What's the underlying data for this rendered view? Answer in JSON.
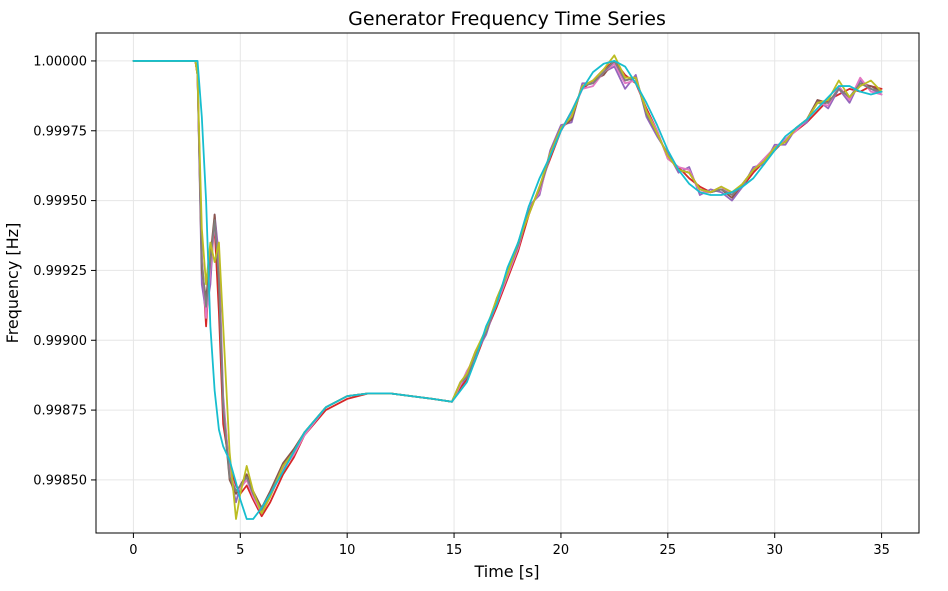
{
  "chart_data": {
    "type": "line",
    "title": "Generator Frequency Time Series",
    "xlabel": "Time [s]",
    "ylabel": "Frequency [Hz]",
    "xlim": [
      -1.75,
      36.75
    ],
    "ylim": [
      0.99831,
      1.0001
    ],
    "xticks": [
      0,
      5,
      10,
      15,
      20,
      25,
      30,
      35
    ],
    "xtick_labels": [
      "0",
      "5",
      "10",
      "15",
      "20",
      "25",
      "30",
      "35"
    ],
    "yticks": [
      0.9985,
      0.99875,
      0.999,
      0.99925,
      0.9995,
      0.99975,
      1.0
    ],
    "ytick_labels": [
      "0.99850",
      "0.99875",
      "0.99900",
      "0.99925",
      "0.99950",
      "0.99975",
      "1.00000"
    ],
    "grid": true,
    "series": [
      {
        "color": "#d62728",
        "x": [
          0,
          2.9,
          3.0,
          3.2,
          3.4,
          3.6,
          3.8,
          4.0,
          4.2,
          4.5,
          4.8,
          5.0,
          5.3,
          5.6,
          6.0,
          6.4,
          7.0,
          7.5,
          8.0,
          9.0,
          10.0,
          11.0,
          12.0,
          13.0,
          14.0,
          14.9,
          15.3,
          15.6,
          16.0,
          16.5,
          17.0,
          17.5,
          18.0,
          18.5,
          19.0,
          19.5,
          20.0,
          20.5,
          21.0,
          21.5,
          22.0,
          22.5,
          23.0,
          23.5,
          24.0,
          24.5,
          25.0,
          25.5,
          26.0,
          26.5,
          27.0,
          27.5,
          28.0,
          28.5,
          29.0,
          29.5,
          30.0,
          30.5,
          31.0,
          31.5,
          32.0,
          32.5,
          33.0,
          33.5,
          34.0,
          34.5,
          35.0
        ],
        "y": [
          1.0,
          1.0,
          0.99995,
          0.9993,
          0.99905,
          0.9993,
          0.9994,
          0.9991,
          0.9987,
          0.99855,
          0.99848,
          0.99845,
          0.99848,
          0.99843,
          0.99837,
          0.99842,
          0.99852,
          0.99858,
          0.99866,
          0.99875,
          0.99879,
          0.99881,
          0.99881,
          0.9988,
          0.99879,
          0.99878,
          0.99883,
          0.99886,
          0.99893,
          0.99903,
          0.99912,
          0.99922,
          0.99932,
          0.99945,
          0.99955,
          0.99965,
          0.99975,
          0.99982,
          0.9999,
          0.99993,
          0.99997,
          1.0,
          0.99995,
          0.99992,
          0.99983,
          0.99975,
          0.99965,
          0.99962,
          0.99958,
          0.99955,
          0.99953,
          0.99954,
          0.99953,
          0.99955,
          0.9996,
          0.99964,
          0.99968,
          0.99972,
          0.99975,
          0.99978,
          0.99982,
          0.99986,
          0.99988,
          0.9999,
          0.99989,
          0.99991,
          0.9999
        ]
      },
      {
        "color": "#9467bd",
        "x": [
          0,
          2.9,
          3.0,
          3.2,
          3.4,
          3.6,
          3.8,
          4.0,
          4.2,
          4.5,
          4.8,
          5.0,
          5.3,
          5.6,
          6.0,
          6.4,
          7.0,
          7.5,
          8.0,
          9.0,
          10.0,
          11.0,
          12.0,
          13.0,
          14.0,
          14.9,
          15.3,
          15.6,
          16.0,
          16.5,
          17.0,
          17.5,
          18.0,
          18.5,
          19.0,
          19.5,
          20.0,
          20.5,
          21.0,
          21.5,
          22.0,
          22.5,
          23.0,
          23.5,
          24.0,
          24.5,
          25.0,
          25.5,
          26.0,
          26.5,
          27.0,
          27.5,
          28.0,
          28.5,
          29.0,
          29.5,
          30.0,
          30.5,
          31.0,
          31.5,
          32.0,
          32.5,
          33.0,
          33.5,
          34.0,
          34.5,
          35.0
        ],
        "y": [
          1.0,
          1.0,
          0.99995,
          0.9992,
          0.9991,
          0.9992,
          0.99945,
          0.9993,
          0.9988,
          0.99852,
          0.99842,
          0.99848,
          0.99852,
          0.99845,
          0.9984,
          0.99845,
          0.99855,
          0.9986,
          0.99866,
          0.99876,
          0.9988,
          0.99881,
          0.99881,
          0.9988,
          0.99879,
          0.99878,
          0.99884,
          0.99887,
          0.99895,
          0.99902,
          0.99914,
          0.99925,
          0.99934,
          0.99948,
          0.99952,
          0.99968,
          0.99977,
          0.99978,
          0.99992,
          0.99992,
          0.99996,
          0.99998,
          0.9999,
          0.99995,
          0.9998,
          0.99973,
          0.99967,
          0.9996,
          0.99962,
          0.99952,
          0.99954,
          0.99953,
          0.9995,
          0.99955,
          0.99962,
          0.99963,
          0.9997,
          0.9997,
          0.99976,
          0.99978,
          0.99986,
          0.99983,
          0.9999,
          0.99985,
          0.99993,
          0.9999,
          0.99988
        ]
      },
      {
        "color": "#8c564b",
        "x": [
          0,
          2.9,
          3.0,
          3.2,
          3.4,
          3.6,
          3.8,
          4.0,
          4.2,
          4.5,
          4.8,
          5.0,
          5.3,
          5.6,
          6.0,
          6.4,
          7.0,
          7.5,
          8.0,
          9.0,
          10.0,
          11.0,
          12.0,
          13.0,
          14.0,
          14.9,
          15.3,
          15.6,
          16.0,
          16.5,
          17.0,
          17.5,
          18.0,
          18.5,
          19.0,
          19.5,
          20.0,
          20.5,
          21.0,
          21.5,
          22.0,
          22.5,
          23.0,
          23.5,
          24.0,
          24.5,
          25.0,
          25.5,
          26.0,
          26.5,
          27.0,
          27.5,
          28.0,
          28.5,
          29.0,
          29.5,
          30.0,
          30.5,
          31.0,
          31.5,
          32.0,
          32.5,
          33.0,
          33.5,
          34.0,
          34.5,
          35.0
        ],
        "y": [
          1.0,
          1.0,
          0.99995,
          0.99925,
          0.99915,
          0.9993,
          0.99945,
          0.9992,
          0.99875,
          0.9985,
          0.99845,
          0.99848,
          0.99852,
          0.99846,
          0.9984,
          0.99846,
          0.99856,
          0.99861,
          0.99867,
          0.99876,
          0.9988,
          0.99881,
          0.99881,
          0.9988,
          0.99879,
          0.99878,
          0.99885,
          0.99888,
          0.99896,
          0.99903,
          0.99915,
          0.99924,
          0.99935,
          0.99946,
          0.99954,
          0.99967,
          0.99976,
          0.99979,
          0.99991,
          0.99993,
          0.99995,
          1.0,
          0.99993,
          0.99994,
          0.99981,
          0.99974,
          0.99966,
          0.99961,
          0.9996,
          0.99954,
          0.99953,
          0.99954,
          0.99951,
          0.99956,
          0.99961,
          0.99964,
          0.99969,
          0.99971,
          0.99976,
          0.99979,
          0.99986,
          0.99985,
          0.9999,
          0.99987,
          0.99992,
          0.99991,
          0.99989
        ]
      },
      {
        "color": "#e377c2",
        "x": [
          0,
          2.9,
          3.0,
          3.2,
          3.4,
          3.6,
          3.8,
          4.0,
          4.2,
          4.5,
          4.8,
          5.0,
          5.3,
          5.6,
          6.0,
          6.4,
          7.0,
          7.5,
          8.0,
          9.0,
          10.0,
          11.0,
          12.0,
          13.0,
          14.0,
          14.9,
          15.3,
          15.6,
          16.0,
          16.5,
          17.0,
          17.5,
          18.0,
          18.5,
          19.0,
          19.5,
          20.0,
          20.5,
          21.0,
          21.5,
          22.0,
          22.5,
          23.0,
          23.5,
          24.0,
          24.5,
          25.0,
          25.5,
          26.0,
          26.5,
          27.0,
          27.5,
          28.0,
          28.5,
          29.0,
          29.5,
          30.0,
          30.5,
          31.0,
          31.5,
          32.0,
          32.5,
          33.0,
          33.5,
          34.0,
          34.5,
          35.0
        ],
        "y": [
          1.0,
          1.0,
          0.99995,
          0.9993,
          0.99908,
          0.99925,
          0.99942,
          0.99925,
          0.99878,
          0.99853,
          0.99846,
          0.99847,
          0.9985,
          0.99844,
          0.99838,
          0.99844,
          0.99854,
          0.99859,
          0.99866,
          0.99876,
          0.9988,
          0.99881,
          0.99881,
          0.9988,
          0.99879,
          0.99878,
          0.99884,
          0.99889,
          0.99894,
          0.99904,
          0.99913,
          0.99923,
          0.99933,
          0.99947,
          0.99953,
          0.99966,
          0.99975,
          0.99981,
          0.9999,
          0.99991,
          0.99996,
          0.99999,
          0.99992,
          0.99993,
          0.99982,
          0.99975,
          0.99965,
          0.99962,
          0.99961,
          0.99953,
          0.99953,
          0.99955,
          0.99952,
          0.99956,
          0.99961,
          0.99965,
          0.99969,
          0.99972,
          0.99975,
          0.99979,
          0.99985,
          0.99984,
          0.99991,
          0.99986,
          0.99994,
          0.99989,
          0.99988
        ]
      },
      {
        "color": "#7f7f7f",
        "x": [
          0,
          2.9,
          3.0,
          3.2,
          3.4,
          3.6,
          3.8,
          4.0,
          4.2,
          4.5,
          4.8,
          5.0,
          5.3,
          5.6,
          6.0,
          6.4,
          7.0,
          7.5,
          8.0,
          9.0,
          10.0,
          11.0,
          12.0,
          13.0,
          14.0,
          14.9,
          15.3,
          15.6,
          16.0,
          16.5,
          17.0,
          17.5,
          18.0,
          18.5,
          19.0,
          19.5,
          20.0,
          20.5,
          21.0,
          21.5,
          22.0,
          22.5,
          23.0,
          23.5,
          24.0,
          24.5,
          25.0,
          25.5,
          26.0,
          26.5,
          27.0,
          27.5,
          28.0,
          28.5,
          29.0,
          29.5,
          30.0,
          30.5,
          31.0,
          31.5,
          32.0,
          32.5,
          33.0,
          33.5,
          34.0,
          34.5,
          35.0
        ],
        "y": [
          1.0,
          1.0,
          0.99995,
          0.99928,
          0.99912,
          0.99928,
          0.99943,
          0.99922,
          0.99876,
          0.99851,
          0.99846,
          0.99848,
          0.99851,
          0.99845,
          0.99839,
          0.99845,
          0.99855,
          0.9986,
          0.99867,
          0.99876,
          0.9988,
          0.99881,
          0.99881,
          0.9988,
          0.99879,
          0.99878,
          0.99885,
          0.99887,
          0.99895,
          0.99903,
          0.99914,
          0.99924,
          0.99934,
          0.99946,
          0.99954,
          0.99966,
          0.99976,
          0.9998,
          0.99991,
          0.99992,
          0.99996,
          1.0,
          0.99993,
          0.99994,
          0.99981,
          0.99974,
          0.99966,
          0.99961,
          0.9996,
          0.99954,
          0.99953,
          0.99954,
          0.99952,
          0.99956,
          0.99961,
          0.99964,
          0.99969,
          0.99971,
          0.99976,
          0.99979,
          0.99985,
          0.99985,
          0.9999,
          0.99987,
          0.99992,
          0.9999,
          0.99989
        ]
      },
      {
        "color": "#bcbd22",
        "x": [
          0,
          2.9,
          3.0,
          3.2,
          3.4,
          3.6,
          3.8,
          4.0,
          4.2,
          4.5,
          4.8,
          5.0,
          5.3,
          5.6,
          6.0,
          6.4,
          7.0,
          7.5,
          8.0,
          9.0,
          10.0,
          11.0,
          12.0,
          13.0,
          14.0,
          14.9,
          15.3,
          15.6,
          16.0,
          16.5,
          17.0,
          17.5,
          18.0,
          18.5,
          19.0,
          19.5,
          20.0,
          20.5,
          21.0,
          21.5,
          22.0,
          22.5,
          23.0,
          23.5,
          24.0,
          24.5,
          25.0,
          25.5,
          26.0,
          26.5,
          27.0,
          27.5,
          28.0,
          28.5,
          29.0,
          29.5,
          30.0,
          30.5,
          31.0,
          31.5,
          32.0,
          32.5,
          33.0,
          33.5,
          34.0,
          34.5,
          35.0
        ],
        "y": [
          1.0,
          1.0,
          0.99995,
          0.9994,
          0.9992,
          0.99935,
          0.99928,
          0.99935,
          0.99905,
          0.9986,
          0.99836,
          0.99845,
          0.99855,
          0.99846,
          0.99838,
          0.99844,
          0.99855,
          0.9986,
          0.99867,
          0.99876,
          0.9988,
          0.99881,
          0.99881,
          0.9988,
          0.99879,
          0.99878,
          0.99885,
          0.99888,
          0.99896,
          0.99904,
          0.99915,
          0.99924,
          0.99935,
          0.99945,
          0.99955,
          0.99967,
          0.99976,
          0.9998,
          0.99991,
          0.99993,
          0.99997,
          1.00002,
          0.99994,
          0.99994,
          0.99982,
          0.99974,
          0.99966,
          0.99961,
          0.9996,
          0.99954,
          0.99953,
          0.99955,
          0.99953,
          0.99956,
          0.99961,
          0.99964,
          0.99969,
          0.99971,
          0.99976,
          0.99979,
          0.99985,
          0.99986,
          0.99993,
          0.99987,
          0.99991,
          0.99993,
          0.99989
        ]
      },
      {
        "color": "#17becf",
        "x": [
          0,
          2.9,
          3.0,
          3.2,
          3.4,
          3.6,
          3.8,
          4.0,
          4.2,
          4.5,
          4.8,
          5.0,
          5.3,
          5.6,
          6.0,
          6.4,
          7.0,
          7.5,
          8.0,
          9.0,
          10.0,
          11.0,
          12.0,
          13.0,
          14.0,
          14.9,
          15.3,
          15.6,
          16.0,
          16.5,
          17.0,
          17.5,
          18.0,
          18.5,
          19.0,
          19.5,
          20.0,
          20.5,
          21.0,
          21.5,
          22.0,
          22.5,
          23.0,
          23.5,
          24.0,
          24.5,
          25.0,
          25.5,
          26.0,
          26.5,
          27.0,
          27.5,
          28.0,
          28.5,
          29.0,
          29.5,
          30.0,
          30.5,
          31.0,
          31.5,
          32.0,
          32.5,
          33.0,
          33.5,
          34.0,
          34.5,
          35.0
        ],
        "y": [
          1.0,
          1.0,
          1.0,
          0.9998,
          0.9995,
          0.99905,
          0.99882,
          0.99868,
          0.99862,
          0.99857,
          0.99849,
          0.99843,
          0.99836,
          0.99836,
          0.9984,
          0.99845,
          0.99853,
          0.9986,
          0.99867,
          0.99876,
          0.9988,
          0.99881,
          0.99881,
          0.9988,
          0.99879,
          0.99878,
          0.99882,
          0.99885,
          0.99893,
          0.99905,
          0.99913,
          0.99926,
          0.99935,
          0.99948,
          0.99958,
          0.99966,
          0.99975,
          0.99982,
          0.9999,
          0.99996,
          0.99999,
          1.0,
          0.99998,
          0.99992,
          0.99985,
          0.99977,
          0.99968,
          0.99961,
          0.99956,
          0.99953,
          0.99952,
          0.99952,
          0.99953,
          0.99955,
          0.99958,
          0.99963,
          0.99968,
          0.99973,
          0.99976,
          0.99979,
          0.99983,
          0.99987,
          0.99991,
          0.99991,
          0.99989,
          0.99988,
          0.99989
        ]
      }
    ]
  }
}
